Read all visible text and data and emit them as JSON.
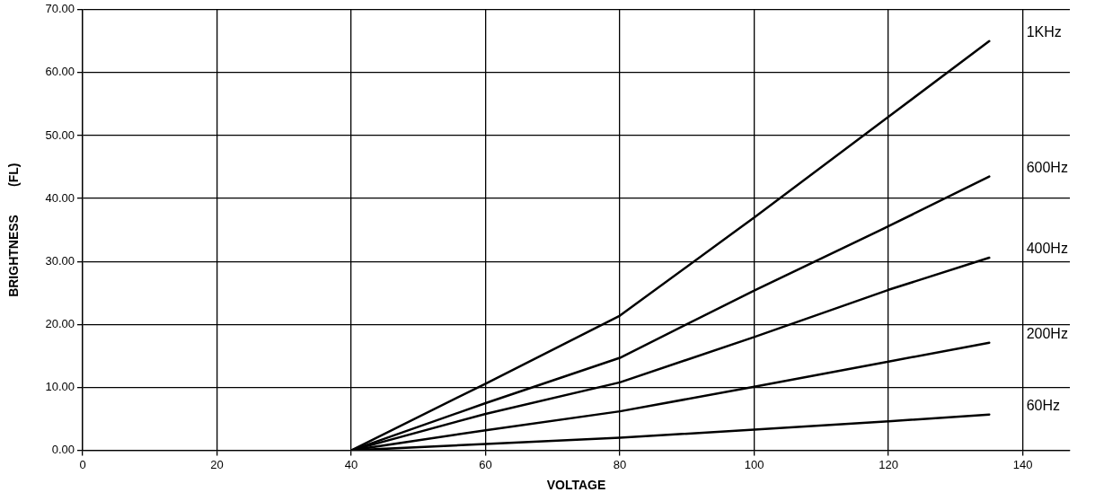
{
  "chart_data": {
    "type": "line",
    "xlabel": "VOLTAGE",
    "ylabel": "BRIGHTNESS        (FL)",
    "x": [
      40,
      60,
      80,
      100,
      120,
      135
    ],
    "series": [
      {
        "name": "1KHz",
        "color": "#000000",
        "values": [
          0,
          10.6,
          21.4,
          37,
          53,
          65
        ]
      },
      {
        "name": "600Hz",
        "color": "#000000",
        "values": [
          0,
          7.5,
          14.7,
          25.4,
          35.6,
          43.5
        ]
      },
      {
        "name": "400Hz",
        "color": "#000000",
        "values": [
          0,
          5.8,
          10.8,
          18,
          25.5,
          30.6
        ]
      },
      {
        "name": "200Hz",
        "color": "#000000",
        "values": [
          0,
          3.2,
          6.2,
          10.1,
          14.1,
          17.1
        ]
      },
      {
        "name": "60Hz",
        "color": "#000000",
        "values": [
          0,
          1,
          2,
          3.3,
          4.6,
          5.7
        ]
      }
    ],
    "xlim": [
      0,
      147
    ],
    "xticks": [
      0,
      20,
      40,
      60,
      80,
      100,
      120,
      140
    ],
    "ylim": [
      0,
      70
    ],
    "yticks": [
      {
        "value": 0,
        "label": "0.00"
      },
      {
        "value": 10,
        "label": "10.00"
      },
      {
        "value": 20,
        "label": "20.00"
      },
      {
        "value": 30,
        "label": "30.00"
      },
      {
        "value": 40,
        "label": "40.00"
      },
      {
        "value": 50,
        "label": "50.00"
      },
      {
        "value": 60,
        "label": "60.00"
      },
      {
        "value": 70,
        "label": "70.00"
      }
    ],
    "grid": true,
    "legend": false,
    "marker": "none",
    "line_style": "solid"
  }
}
